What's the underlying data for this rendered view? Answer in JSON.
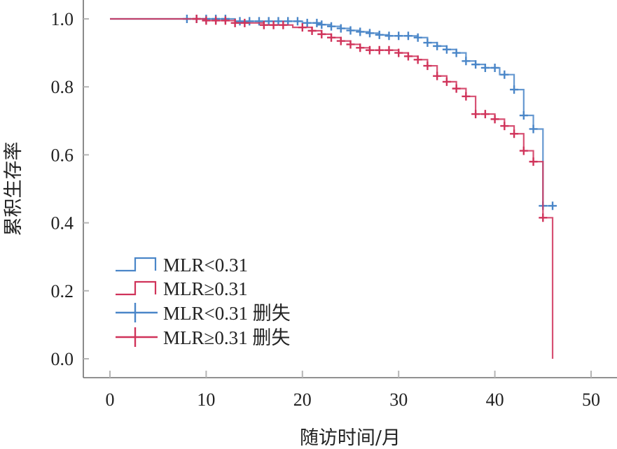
{
  "chart_data": {
    "type": "line",
    "subtype": "kaplan-meier",
    "title": "",
    "xlabel": "随访时间/月",
    "ylabel": "累积生存率",
    "xlim": [
      0,
      50
    ],
    "ylim": [
      0,
      1.0
    ],
    "xticks": [
      0,
      10,
      20,
      30,
      40,
      50
    ],
    "xtick_labels": [
      "0",
      "10",
      "20",
      "30",
      "40",
      "50"
    ],
    "yticks": [
      0.0,
      0.2,
      0.4,
      0.6,
      0.8,
      1.0
    ],
    "ytick_labels": [
      "0.0",
      "0.2",
      "0.4",
      "0.6",
      "0.8",
      "1.0"
    ],
    "grid": false,
    "legend_position": "bottom-left",
    "legend": [
      {
        "label": "MLR<0.31",
        "kind": "step",
        "series": 0
      },
      {
        "label": "MLR≥0.31",
        "kind": "step",
        "series": 1
      },
      {
        "label": "MLR<0.31 删失",
        "kind": "censor",
        "series": 0
      },
      {
        "label": "MLR≥0.31 删失",
        "kind": "censor",
        "series": 1
      }
    ],
    "series": [
      {
        "name": "MLR<0.31",
        "color": "#4a86c8",
        "steps": [
          [
            0,
            1.0
          ],
          [
            13,
            0.993
          ],
          [
            20,
            0.988
          ],
          [
            22,
            0.983
          ],
          [
            23,
            0.978
          ],
          [
            24,
            0.972
          ],
          [
            25,
            0.966
          ],
          [
            26,
            0.962
          ],
          [
            27,
            0.958
          ],
          [
            28,
            0.953
          ],
          [
            29,
            0.95
          ],
          [
            32,
            0.945
          ],
          [
            33,
            0.93
          ],
          [
            34,
            0.92
          ],
          [
            35,
            0.91
          ],
          [
            36,
            0.9
          ],
          [
            37,
            0.876
          ],
          [
            38,
            0.866
          ],
          [
            39,
            0.856
          ],
          [
            40.5,
            0.836
          ],
          [
            42,
            0.792
          ],
          [
            43,
            0.716
          ],
          [
            44,
            0.676
          ],
          [
            45,
            0.45
          ]
        ],
        "end_time": 46,
        "censored": [
          8,
          9,
          10,
          11,
          12,
          13.5,
          14.5,
          15.5,
          16.5,
          17.5,
          18.5,
          19.5,
          20.5,
          21.5,
          22,
          23,
          24,
          25,
          26,
          27,
          28,
          29,
          30,
          31,
          32,
          33,
          34,
          35,
          36,
          37,
          38,
          39,
          40,
          41,
          42,
          43,
          44,
          45,
          46
        ]
      },
      {
        "name": "MLR≥0.31",
        "color": "#d0335a",
        "steps": [
          [
            0,
            1.0
          ],
          [
            10,
            0.995
          ],
          [
            13,
            0.988
          ],
          [
            16,
            0.982
          ],
          [
            19,
            0.975
          ],
          [
            21,
            0.965
          ],
          [
            22,
            0.955
          ],
          [
            23,
            0.945
          ],
          [
            24,
            0.935
          ],
          [
            25,
            0.925
          ],
          [
            26,
            0.915
          ],
          [
            27,
            0.908
          ],
          [
            30,
            0.9
          ],
          [
            31,
            0.89
          ],
          [
            32,
            0.88
          ],
          [
            33,
            0.862
          ],
          [
            34,
            0.832
          ],
          [
            35,
            0.815
          ],
          [
            36,
            0.795
          ],
          [
            37,
            0.772
          ],
          [
            38,
            0.72
          ],
          [
            40,
            0.705
          ],
          [
            41,
            0.685
          ],
          [
            42,
            0.662
          ],
          [
            43,
            0.612
          ],
          [
            44,
            0.58
          ],
          [
            45,
            0.415
          ],
          [
            46,
            0.0
          ]
        ],
        "end_time": 46,
        "censored": [
          9,
          10,
          11,
          12,
          13,
          14,
          16,
          17,
          18,
          20,
          21,
          22,
          23,
          24,
          25,
          26,
          27,
          28,
          29,
          30,
          31,
          32,
          33,
          34,
          35,
          36,
          37,
          38,
          39,
          40,
          41,
          42,
          43,
          44,
          45
        ]
      }
    ]
  }
}
